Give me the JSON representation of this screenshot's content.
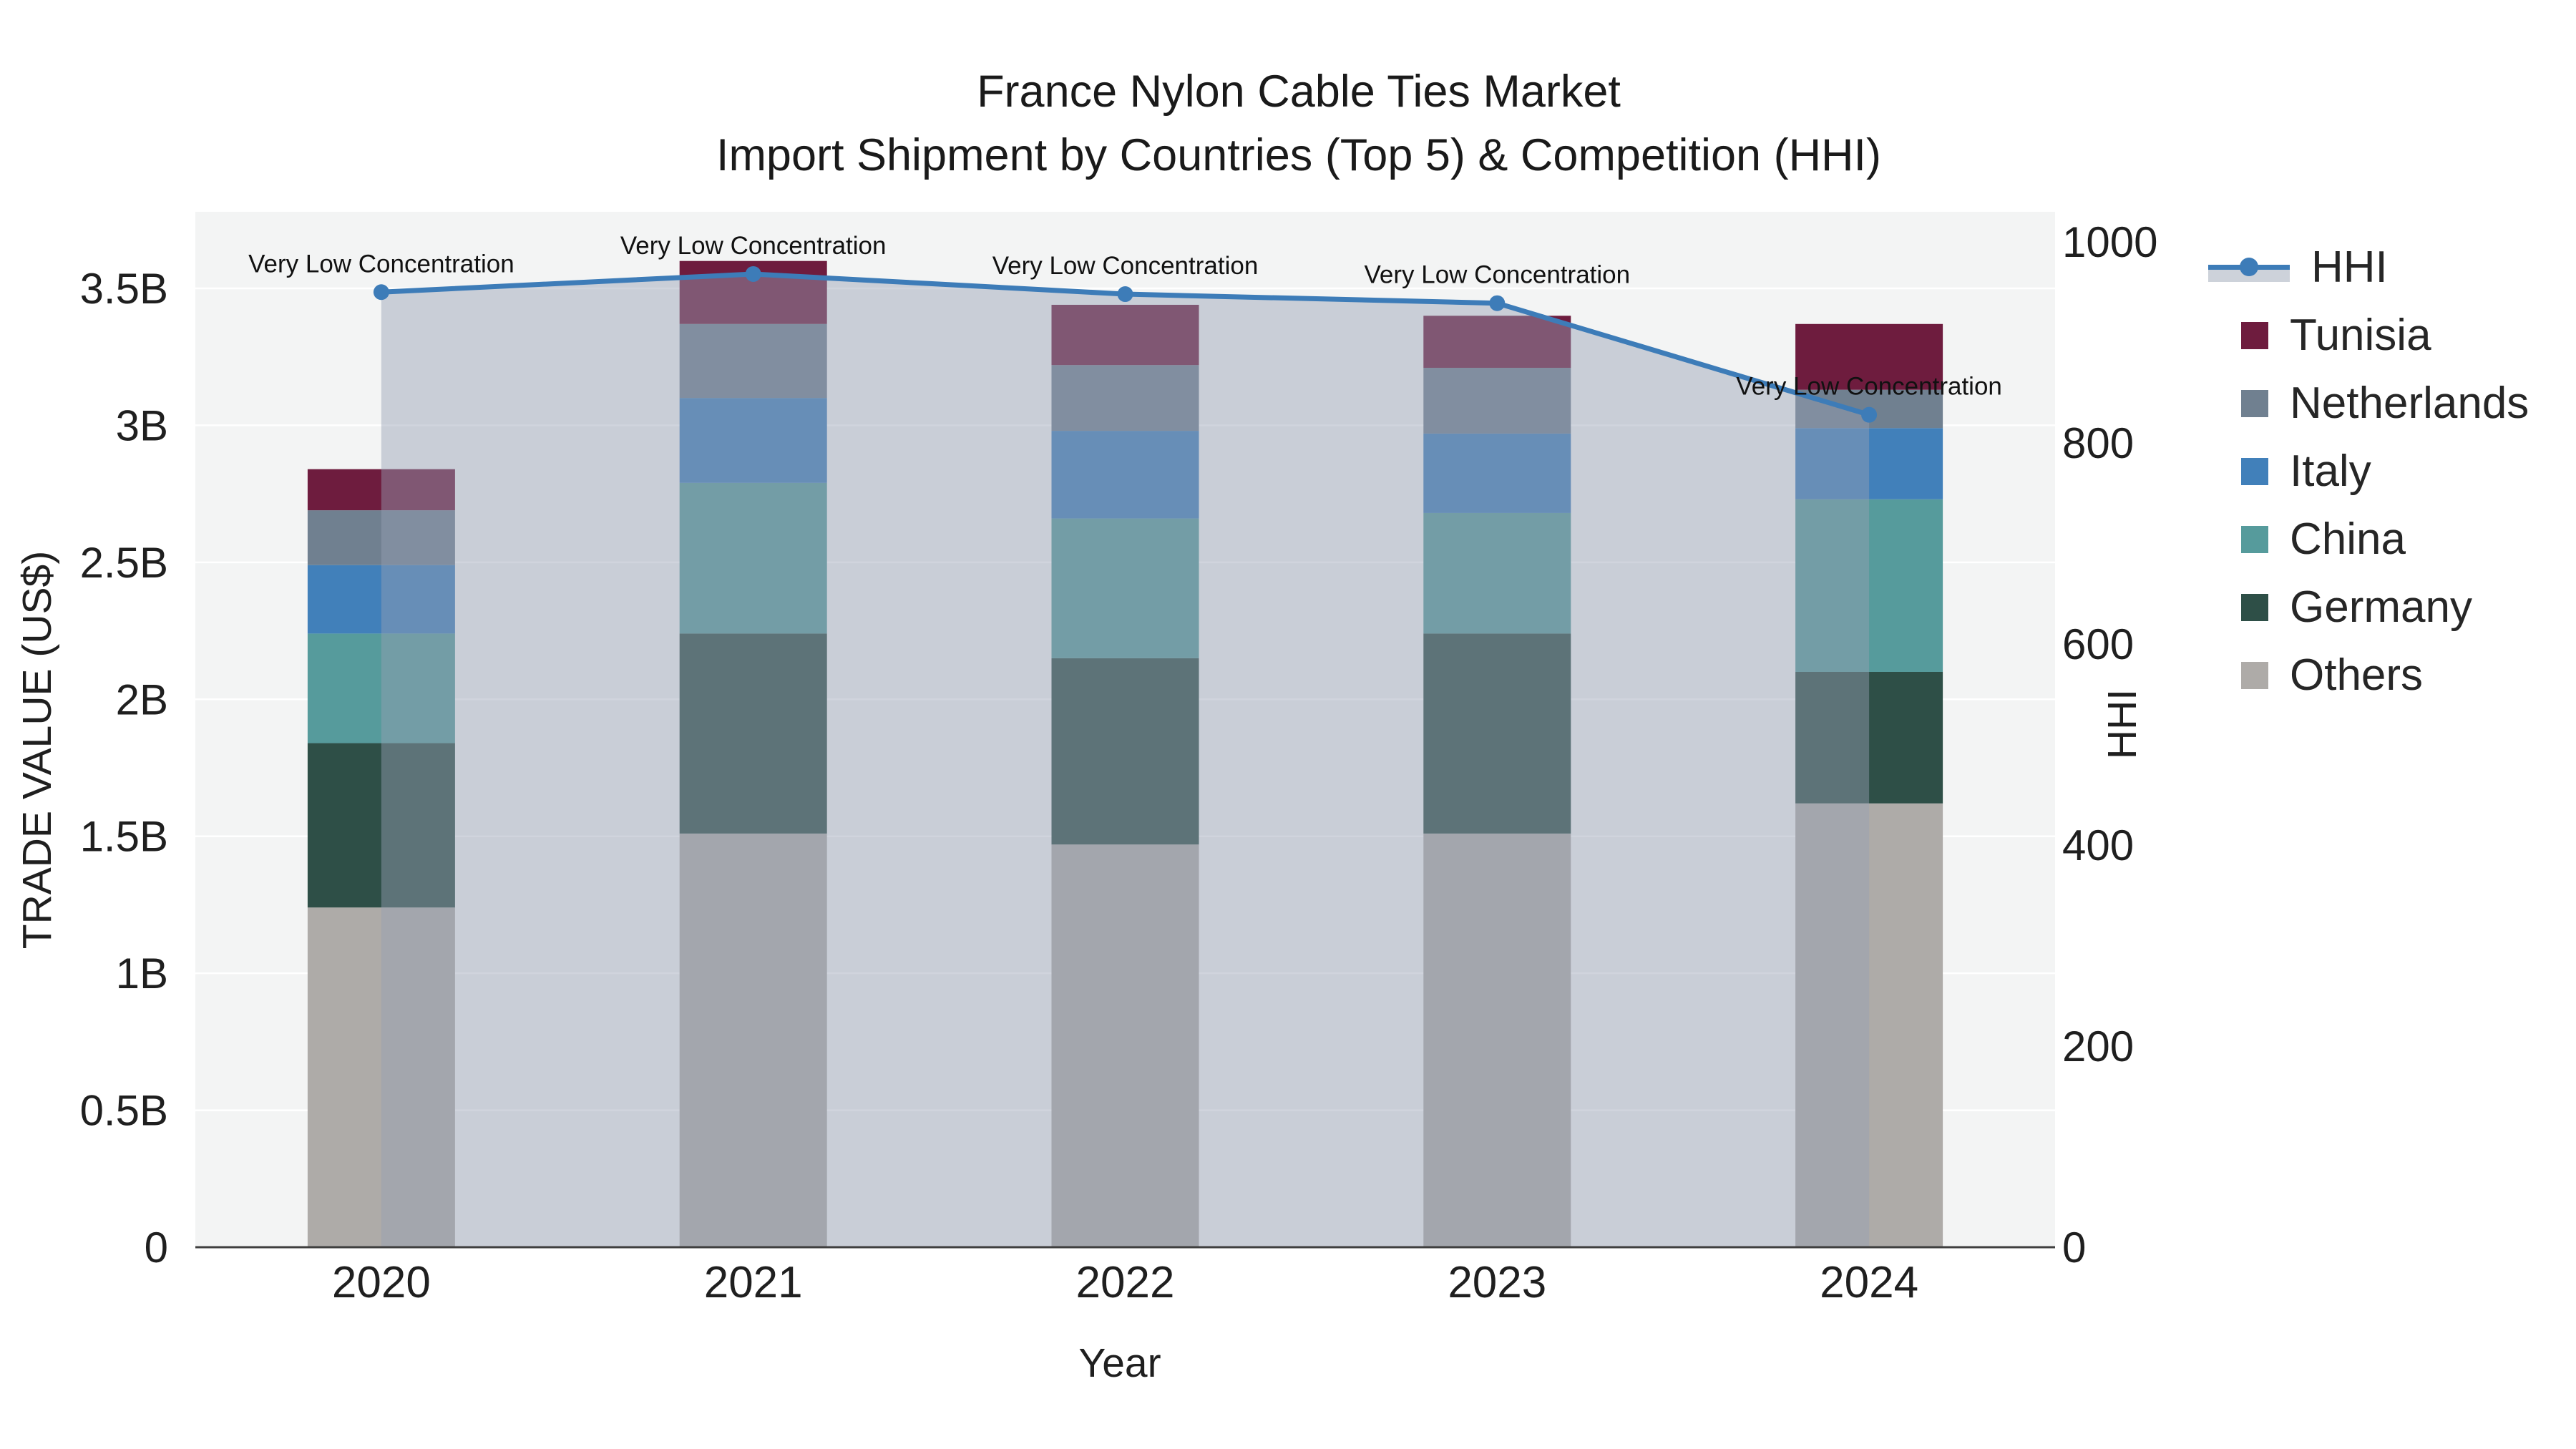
{
  "title": {
    "line1": "France Nylon Cable Ties Market",
    "line2": "Import Shipment by Countries (Top 5) & Competition (HHI)"
  },
  "axes": {
    "x_label": "Year",
    "y_left_label": "TRADE VALUE (US$)",
    "y_right_label": "HHI"
  },
  "chart_data": {
    "type": "combo: stacked bar (trade value) + line with markers and area fill (HHI), dual y-axes",
    "categories": [
      "2020",
      "2021",
      "2022",
      "2023",
      "2024"
    ],
    "xlabel": "Year",
    "y_left": {
      "label": "TRADE VALUE (US$)",
      "unit": "billions of US$",
      "tick_labels": [
        "0",
        "0.5B",
        "1B",
        "1.5B",
        "2B",
        "2.5B",
        "3B",
        "3.5B"
      ],
      "tick_values": [
        0,
        0.5,
        1,
        1.5,
        2,
        2.5,
        3,
        3.5
      ],
      "range": [
        0,
        3.775
      ]
    },
    "y_right": {
      "label": "HHI",
      "tick_labels": [
        "0",
        "200",
        "400",
        "600",
        "800",
        "1000"
      ],
      "tick_values": [
        0,
        200,
        400,
        600,
        800,
        1000
      ],
      "range": [
        0,
        1028
      ]
    },
    "series": [
      {
        "name": "Tunisia",
        "color": "#6e1c3e",
        "values": [
          0.15,
          0.23,
          0.22,
          0.19,
          0.24
        ]
      },
      {
        "name": "Netherlands",
        "color": "#708090",
        "values": [
          0.2,
          0.27,
          0.24,
          0.24,
          0.14
        ]
      },
      {
        "name": "Italy",
        "color": "#4180ba",
        "values": [
          0.25,
          0.31,
          0.32,
          0.29,
          0.26
        ]
      },
      {
        "name": "China",
        "color": "#569b9c",
        "values": [
          0.4,
          0.55,
          0.51,
          0.44,
          0.63
        ]
      },
      {
        "name": "Germany",
        "color": "#2e4f47",
        "values": [
          0.6,
          0.73,
          0.68,
          0.73,
          0.48
        ]
      },
      {
        "name": "Others",
        "color": "#aeaba8",
        "values": [
          1.24,
          1.51,
          1.47,
          1.51,
          1.62
        ]
      }
    ],
    "stack_order_bottom_to_top": [
      "Others",
      "Germany",
      "China",
      "Italy",
      "Netherlands",
      "Tunisia"
    ],
    "stack_totals_billion": [
      2.84,
      3.6,
      3.44,
      3.4,
      3.37
    ],
    "line_series": {
      "name": "HHI",
      "color": "#3d7cb8",
      "area_fill": "rgba(150,160,180,0.45)",
      "values": [
        950,
        968,
        948,
        939,
        828
      ]
    },
    "annotations": [
      {
        "x": "2020",
        "text": "Very Low Concentration"
      },
      {
        "x": "2021",
        "text": "Very Low Concentration"
      },
      {
        "x": "2022",
        "text": "Very Low Concentration"
      },
      {
        "x": "2023",
        "text": "Very Low Concentration"
      },
      {
        "x": "2024",
        "text": "Very Low Concentration"
      }
    ],
    "legend": {
      "position": "right",
      "entries": [
        "HHI",
        "Tunisia",
        "Netherlands",
        "Italy",
        "China",
        "Germany",
        "Others"
      ]
    },
    "grid": "horizontal white gridlines at left-axis ticks on light gray plot background"
  },
  "colors": {
    "page_bg": "#ffffff",
    "plot_bg": "#f3f4f4",
    "grid": "#ffffff",
    "axis_line": "#3f3f3f",
    "text": "#1f1f1f"
  }
}
